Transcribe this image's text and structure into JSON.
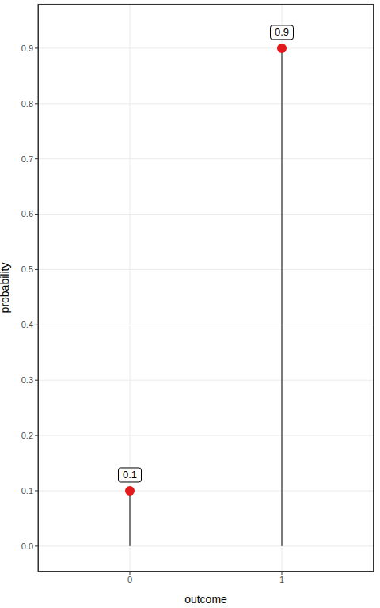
{
  "chart_data": {
    "type": "lollipop",
    "categories": [
      "0",
      "1"
    ],
    "values": [
      0.1,
      0.9
    ],
    "color": "#e31a1c",
    "x_label": "outcome",
    "y_label": "probability",
    "ylim": [
      -0.046,
      0.98
    ],
    "yticks": [
      {
        "value": 0,
        "label": "0.0"
      },
      0.1,
      0.2,
      0.3,
      0.4,
      0.5,
      0.6,
      0.7,
      0.8,
      0.9
    ],
    "grid": true,
    "data_labels": true
  }
}
